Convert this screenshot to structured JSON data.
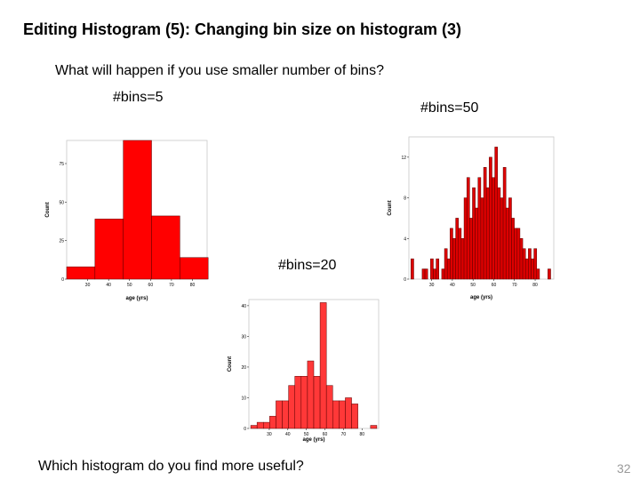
{
  "slide": {
    "title": "Editing Histogram (5): Changing bin size on histogram (3)",
    "question": "What will happen if you use smaller number of bins?",
    "bottom_question": "Which histogram do you find more useful?",
    "page_number": "32"
  },
  "labels": {
    "bins5": "#bins=5",
    "bins50": "#bins=50",
    "bins20": "#bins=20"
  },
  "chart_data": [
    {
      "id": "h5",
      "type": "bar",
      "xlabel": "age (yrs)",
      "ylabel": "Count",
      "bar_color": "#ff0000",
      "xlim": [
        20,
        87
      ],
      "ylim": [
        0,
        90
      ],
      "x_ticks": [
        30,
        40,
        50,
        60,
        70,
        80
      ],
      "y_ticks": [
        0,
        25,
        50,
        75
      ],
      "bins": [
        {
          "x0": 20,
          "x1": 33.5,
          "count": 8
        },
        {
          "x0": 33.5,
          "x1": 47,
          "count": 39
        },
        {
          "x0": 47,
          "x1": 60.5,
          "count": 90
        },
        {
          "x0": 60.5,
          "x1": 74,
          "count": 41
        },
        {
          "x0": 74,
          "x1": 87.5,
          "count": 14
        }
      ]
    },
    {
      "id": "h50",
      "type": "bar",
      "xlabel": "age (yrs)",
      "ylabel": "Count",
      "bar_color": "#dd0000",
      "xlim": [
        19,
        89
      ],
      "ylim": [
        0,
        14
      ],
      "x_ticks": [
        30,
        40,
        50,
        60,
        70,
        80
      ],
      "y_ticks": [
        0,
        4,
        8,
        12
      ],
      "bin_start": 20,
      "bin_width": 1.35,
      "counts": [
        2,
        0,
        0,
        0,
        1,
        1,
        0,
        2,
        1,
        2,
        0,
        1,
        3,
        2,
        5,
        4,
        6,
        5,
        4,
        8,
        10,
        6,
        9,
        7,
        10,
        8,
        11,
        9,
        12,
        10,
        13,
        9,
        8,
        11,
        7,
        8,
        6,
        5,
        5,
        4,
        3,
        2,
        3,
        2,
        3,
        1,
        0,
        0,
        0,
        1
      ]
    },
    {
      "id": "h20",
      "type": "bar",
      "xlabel": "age (yrs)",
      "ylabel": "Count",
      "bar_color": "#ff3838",
      "xlim": [
        19,
        89
      ],
      "ylim": [
        0,
        42
      ],
      "x_ticks": [
        30,
        40,
        50,
        60,
        70,
        80
      ],
      "y_ticks": [
        0,
        10,
        20,
        30,
        40
      ],
      "bin_start": 20,
      "bin_width": 3.4,
      "counts": [
        1,
        2,
        2,
        4,
        9,
        9,
        14,
        17,
        17,
        22,
        17,
        41,
        14,
        9,
        9,
        10,
        8,
        0,
        0,
        1
      ]
    }
  ]
}
